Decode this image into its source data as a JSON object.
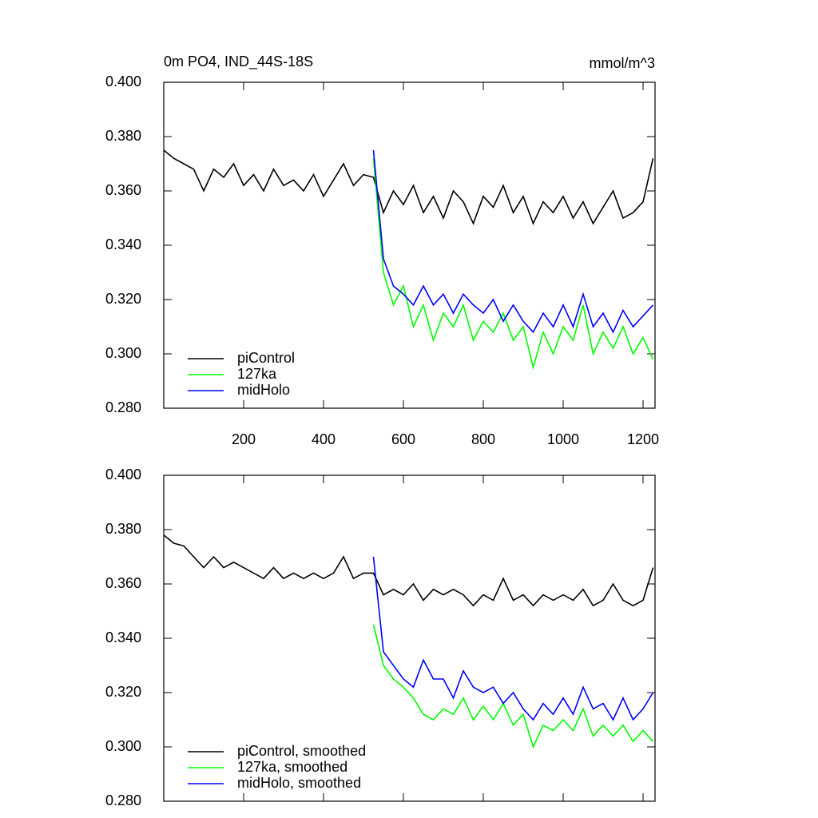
{
  "chart_data": [
    {
      "type": "line",
      "title": "0m PO4, IND_44S-18S",
      "units": "mmol/m^3",
      "x": [
        0,
        25,
        50,
        75,
        100,
        125,
        150,
        175,
        200,
        225,
        250,
        275,
        300,
        325,
        350,
        375,
        400,
        425,
        450,
        475,
        500,
        525,
        550,
        575,
        600,
        625,
        650,
        675,
        700,
        725,
        750,
        775,
        800,
        825,
        850,
        875,
        900,
        925,
        950,
        975,
        1000,
        1025,
        1050,
        1075,
        1100,
        1125,
        1150,
        1175,
        1200,
        1225
      ],
      "series": [
        {
          "name": "piControl",
          "color": "#000000",
          "values": [
            0.375,
            0.372,
            0.37,
            0.368,
            0.36,
            0.368,
            0.365,
            0.37,
            0.362,
            0.366,
            0.36,
            0.368,
            0.362,
            0.364,
            0.36,
            0.366,
            0.358,
            0.364,
            0.37,
            0.362,
            0.366,
            0.365,
            0.352,
            0.36,
            0.355,
            0.362,
            0.352,
            0.358,
            0.35,
            0.36,
            0.356,
            0.348,
            0.358,
            0.354,
            0.362,
            0.352,
            0.358,
            0.348,
            0.356,
            0.352,
            0.358,
            0.35,
            0.356,
            0.348,
            0.354,
            0.36,
            0.35,
            0.352,
            0.356,
            0.372
          ]
        },
        {
          "name": "127ka",
          "color": "#00ff00",
          "values": [
            null,
            null,
            null,
            null,
            null,
            null,
            null,
            null,
            null,
            null,
            null,
            null,
            null,
            null,
            null,
            null,
            null,
            null,
            null,
            null,
            null,
            0.372,
            0.33,
            0.318,
            0.325,
            0.31,
            0.318,
            0.305,
            0.315,
            0.31,
            0.318,
            0.305,
            0.312,
            0.308,
            0.315,
            0.305,
            0.31,
            0.295,
            0.308,
            0.3,
            0.31,
            0.305,
            0.318,
            0.3,
            0.308,
            0.302,
            0.31,
            0.3,
            0.306,
            0.298
          ]
        },
        {
          "name": "midHolo",
          "color": "#0000ff",
          "values": [
            null,
            null,
            null,
            null,
            null,
            null,
            null,
            null,
            null,
            null,
            null,
            null,
            null,
            null,
            null,
            null,
            null,
            null,
            null,
            null,
            null,
            0.375,
            0.335,
            0.325,
            0.322,
            0.318,
            0.325,
            0.318,
            0.322,
            0.315,
            0.322,
            0.318,
            0.315,
            0.32,
            0.312,
            0.318,
            0.312,
            0.308,
            0.315,
            0.31,
            0.318,
            0.31,
            0.322,
            0.31,
            0.315,
            0.308,
            0.316,
            0.31,
            0.314,
            0.318
          ]
        }
      ],
      "xlim": [
        0,
        1230
      ],
      "xticks": [
        200,
        400,
        600,
        800,
        1000,
        1200
      ],
      "ylim": [
        0.28,
        0.4
      ],
      "yticks": [
        {
          "value": 0.28,
          "label": "0.280"
        },
        {
          "value": 0.3,
          "label": "0.300"
        },
        {
          "value": 0.32,
          "label": "0.320"
        },
        {
          "value": 0.34,
          "label": "0.340"
        },
        {
          "value": 0.36,
          "label": "0.360"
        },
        {
          "value": 0.38,
          "label": "0.380"
        },
        {
          "value": 0.4,
          "label": "0.400"
        }
      ],
      "legend": "lower left"
    },
    {
      "type": "line",
      "x": [
        0,
        25,
        50,
        75,
        100,
        125,
        150,
        175,
        200,
        225,
        250,
        275,
        300,
        325,
        350,
        375,
        400,
        425,
        450,
        475,
        500,
        525,
        550,
        575,
        600,
        625,
        650,
        675,
        700,
        725,
        750,
        775,
        800,
        825,
        850,
        875,
        900,
        925,
        950,
        975,
        1000,
        1025,
        1050,
        1075,
        1100,
        1125,
        1150,
        1175,
        1200,
        1225
      ],
      "series": [
        {
          "name": "piControl, smoothed",
          "color": "#000000",
          "values": [
            0.378,
            0.375,
            0.374,
            0.37,
            0.366,
            0.37,
            0.366,
            0.368,
            0.366,
            0.364,
            0.362,
            0.366,
            0.362,
            0.364,
            0.362,
            0.364,
            0.362,
            0.364,
            0.37,
            0.362,
            0.364,
            0.364,
            0.356,
            0.358,
            0.356,
            0.36,
            0.354,
            0.358,
            0.356,
            0.358,
            0.356,
            0.352,
            0.356,
            0.354,
            0.362,
            0.354,
            0.356,
            0.352,
            0.356,
            0.354,
            0.356,
            0.354,
            0.358,
            0.352,
            0.354,
            0.36,
            0.354,
            0.352,
            0.354,
            0.366
          ]
        },
        {
          "name": "127ka, smoothed",
          "color": "#00ff00",
          "values": [
            null,
            null,
            null,
            null,
            null,
            null,
            null,
            null,
            null,
            null,
            null,
            null,
            null,
            null,
            null,
            null,
            null,
            null,
            null,
            null,
            null,
            0.345,
            0.33,
            0.325,
            0.322,
            0.318,
            0.312,
            0.31,
            0.314,
            0.312,
            0.318,
            0.31,
            0.315,
            0.31,
            0.316,
            0.308,
            0.312,
            0.3,
            0.308,
            0.306,
            0.31,
            0.306,
            0.314,
            0.304,
            0.308,
            0.304,
            0.308,
            0.302,
            0.306,
            0.302
          ]
        },
        {
          "name": "midHolo, smoothed",
          "color": "#0000ff",
          "values": [
            null,
            null,
            null,
            null,
            null,
            null,
            null,
            null,
            null,
            null,
            null,
            null,
            null,
            null,
            null,
            null,
            null,
            null,
            null,
            null,
            null,
            0.37,
            0.335,
            0.33,
            0.325,
            0.322,
            0.332,
            0.325,
            0.325,
            0.318,
            0.328,
            0.322,
            0.32,
            0.322,
            0.316,
            0.32,
            0.314,
            0.31,
            0.316,
            0.312,
            0.318,
            0.312,
            0.322,
            0.314,
            0.316,
            0.31,
            0.318,
            0.31,
            0.314,
            0.32
          ]
        }
      ],
      "xlim": [
        0,
        1230
      ],
      "ylim": [
        0.28,
        0.4
      ],
      "yticks": [
        {
          "value": 0.28,
          "label": "0.280"
        },
        {
          "value": 0.3,
          "label": "0.300"
        },
        {
          "value": 0.32,
          "label": "0.320"
        },
        {
          "value": 0.34,
          "label": "0.340"
        },
        {
          "value": 0.36,
          "label": "0.360"
        },
        {
          "value": 0.38,
          "label": "0.380"
        },
        {
          "value": 0.4,
          "label": "0.400"
        }
      ],
      "legend": "lower left"
    }
  ]
}
